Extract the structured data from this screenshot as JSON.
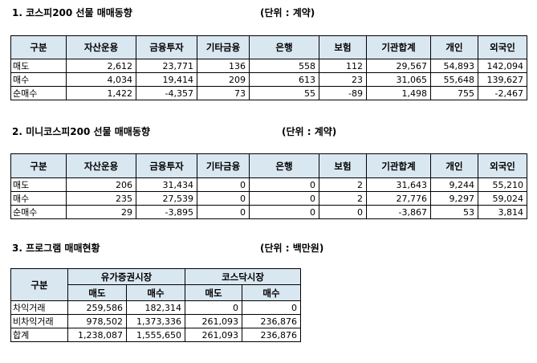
{
  "section1": {
    "title": "1. 코스피200 선물 매매동향",
    "unit": "(단위 : 계약)",
    "headers": [
      "구분",
      "자산운용",
      "금융투자",
      "기타금융",
      "은행",
      "보험",
      "기관합계",
      "개인",
      "외국인"
    ],
    "rows": [
      [
        "매도",
        "2,612",
        "23,771",
        "136",
        "558",
        "112",
        "29,567",
        "54,893",
        "142,094"
      ],
      [
        "매수",
        "4,034",
        "19,414",
        "209",
        "613",
        "23",
        "31,065",
        "55,648",
        "139,627"
      ],
      [
        "순매수",
        "1,422",
        "-4,357",
        "73",
        "55",
        "-89",
        "1,498",
        "755",
        "-2,467"
      ]
    ]
  },
  "section2": {
    "title": "2. 미니코스피200 선물 매매동향",
    "unit": "(단위 : 계약)",
    "headers": [
      "구분",
      "자산운용",
      "금융투자",
      "기타금융",
      "은행",
      "보험",
      "기관합계",
      "개인",
      "외국인"
    ],
    "rows": [
      [
        "매도",
        "206",
        "31,434",
        "0",
        "0",
        "2",
        "31,643",
        "9,244",
        "55,210"
      ],
      [
        "매수",
        "235",
        "27,539",
        "0",
        "0",
        "2",
        "27,776",
        "9,297",
        "59,024"
      ],
      [
        "순매수",
        "29",
        "-3,895",
        "0",
        "0",
        "0",
        "-3,867",
        "53",
        "3,814"
      ]
    ]
  },
  "section3": {
    "title": "3. 프로그램 매매현황",
    "unit": "(단위 : 백만원)",
    "corner": "구분",
    "groups": [
      "유가증권시장",
      "코스닥시장"
    ],
    "subheaders": [
      "매도",
      "매수",
      "매도",
      "매수"
    ],
    "rows": [
      [
        "차익거래",
        "259,586",
        "182,314",
        "0",
        "0"
      ],
      [
        "비차익거래",
        "978,502",
        "1,373,336",
        "261,093",
        "236,876"
      ],
      [
        "합계",
        "1,238,087",
        "1,555,650",
        "261,093",
        "236,876"
      ]
    ]
  }
}
